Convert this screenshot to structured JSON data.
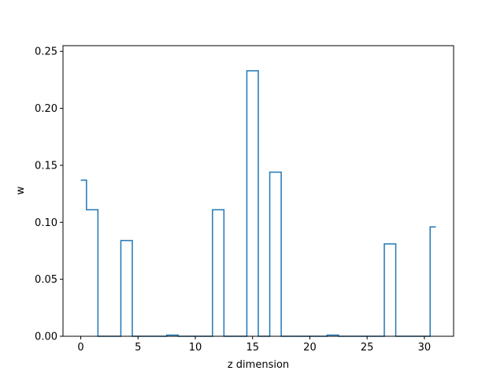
{
  "chart_data": {
    "type": "line",
    "drawstyle": "steps-mid",
    "xlabel": "z dimension",
    "ylabel": "w",
    "xlim": [
      -1.55,
      32.55
    ],
    "ylim": [
      0.0,
      0.255
    ],
    "grid": false,
    "line_color": "#1f77b4",
    "x_ticks": [
      0,
      5,
      10,
      15,
      20,
      25,
      30
    ],
    "x_tick_labels": [
      "0",
      "5",
      "10",
      "15",
      "20",
      "25",
      "30"
    ],
    "y_ticks": [
      0.0,
      0.05,
      0.1,
      0.15,
      0.2,
      0.25
    ],
    "y_tick_labels": [
      "0.00",
      "0.05",
      "0.10",
      "0.15",
      "0.20",
      "0.25"
    ],
    "x": [
      0,
      1,
      2,
      3,
      4,
      5,
      6,
      7,
      8,
      9,
      10,
      11,
      12,
      13,
      14,
      15,
      16,
      17,
      18,
      19,
      20,
      21,
      22,
      23,
      24,
      25,
      26,
      27,
      28,
      29,
      30,
      31
    ],
    "values": [
      0.137,
      0.111,
      0.0,
      0.0,
      0.084,
      0.0,
      0.0,
      0.0,
      0.001,
      0.0,
      0.0,
      0.0,
      0.111,
      0.0,
      0.0,
      0.233,
      0.0,
      0.144,
      0.0,
      0.0,
      0.0,
      0.0,
      0.001,
      0.0,
      0.0,
      0.0,
      0.0,
      0.081,
      0.0,
      0.0,
      0.0,
      0.096
    ]
  }
}
